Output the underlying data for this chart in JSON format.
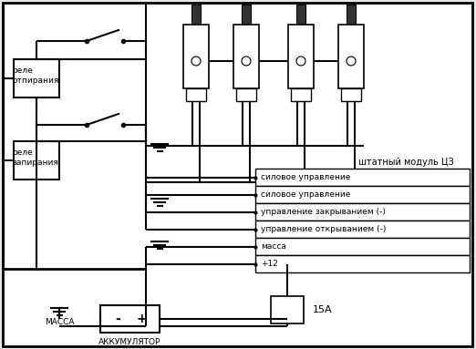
{
  "bg_color": "#e8e8e8",
  "line_color": "#000000",
  "relay1_label_line1": "реле",
  "relay1_label_line2": "отпирания",
  "relay2_label_line1": "реле",
  "relay2_label_line2": "запирания",
  "module_label": "штатный модуль ЦЗ",
  "module_rows": [
    "силовое управление",
    "силовое управление",
    "управление закрыванием (-)",
    "управление открыванием (-)",
    "масса",
    "+12"
  ],
  "massa_label": "МАССА",
  "akk_label": "АККУМУЛЯТОР",
  "fuse_label": "15А"
}
